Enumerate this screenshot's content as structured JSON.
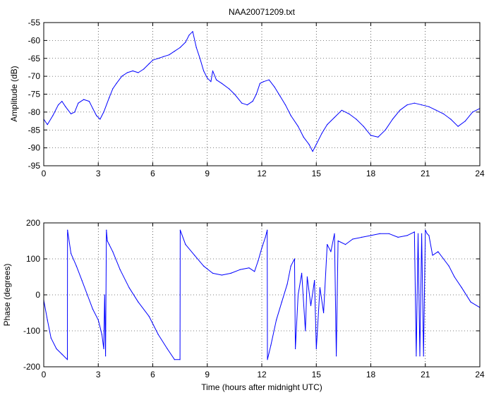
{
  "chart_data": [
    {
      "type": "line",
      "title": "NAA20071209.txt",
      "xlabel": "",
      "ylabel": "Amplitude (dB)",
      "xlim": [
        0,
        24
      ],
      "ylim": [
        -95,
        -55
      ],
      "xticks": [
        "0",
        "3",
        "6",
        "9",
        "12",
        "15",
        "18",
        "21",
        "24"
      ],
      "yticks": [
        "-55",
        "-60",
        "-65",
        "-70",
        "-75",
        "-80",
        "-85",
        "-90",
        "-95"
      ],
      "grid": true,
      "series": [
        {
          "color": "#0000ff",
          "x": [
            0.0,
            0.2,
            0.5,
            0.8,
            1.0,
            1.2,
            1.5,
            1.7,
            1.9,
            2.2,
            2.5,
            2.7,
            2.9,
            3.1,
            3.3,
            3.6,
            3.8,
            4.0,
            4.3,
            4.6,
            4.9,
            5.2,
            5.5,
            5.8,
            6.0,
            6.3,
            6.6,
            6.9,
            7.2,
            7.5,
            7.8,
            8.0,
            8.2,
            8.4,
            8.6,
            8.8,
            9.0,
            9.2,
            9.3,
            9.5,
            9.8,
            10.2,
            10.5,
            10.9,
            11.2,
            11.5,
            11.7,
            11.9,
            12.1,
            12.4,
            12.7,
            13.0,
            13.3,
            13.6,
            14.0,
            14.3,
            14.6,
            14.8,
            15.0,
            15.3,
            15.6,
            16.0,
            16.4,
            16.8,
            17.2,
            17.6,
            18.0,
            18.4,
            18.8,
            19.2,
            19.6,
            20.0,
            20.4,
            20.8,
            21.2,
            21.6,
            22.0,
            22.4,
            22.8,
            23.2,
            23.6,
            24.0
          ],
          "values": [
            -82,
            -83.5,
            -81,
            -78,
            -77,
            -78.5,
            -80.5,
            -80,
            -77.5,
            -76.5,
            -77,
            -79,
            -81,
            -82,
            -80,
            -76,
            -73.5,
            -72,
            -70,
            -69,
            -68.5,
            -69,
            -68,
            -66.5,
            -65.5,
            -65,
            -64.5,
            -64,
            -63,
            -62,
            -60.5,
            -58.5,
            -57.5,
            -62,
            -65,
            -68.5,
            -70.5,
            -71.5,
            -68.5,
            -71,
            -72,
            -73.5,
            -75,
            -77.5,
            -78,
            -77,
            -75,
            -72,
            -71.5,
            -71,
            -73,
            -75.5,
            -78,
            -81,
            -84,
            -87,
            -89,
            -91,
            -89,
            -86,
            -83.5,
            -81.5,
            -79.5,
            -80.5,
            -82,
            -84,
            -86.5,
            -87,
            -85,
            -82,
            -79.5,
            -78,
            -77.5,
            -78,
            -78.5,
            -79.5,
            -80.5,
            -82,
            -84,
            -82.5,
            -80,
            -79
          ]
        }
      ]
    },
    {
      "type": "line",
      "title": "",
      "xlabel": "Time (hours after midnight UTC)",
      "ylabel": "Phase (degrees)",
      "xlim": [
        0,
        24
      ],
      "ylim": [
        -200,
        200
      ],
      "xticks": [
        "0",
        "3",
        "6",
        "9",
        "12",
        "15",
        "18",
        "21",
        "24"
      ],
      "yticks": [
        "200",
        "100",
        "0",
        "-100",
        "-200"
      ],
      "grid": true,
      "series": [
        {
          "color": "#0000ff",
          "x": [
            0.0,
            0.2,
            0.4,
            0.7,
            1.0,
            1.3,
            1.31,
            1.5,
            1.8,
            2.1,
            2.4,
            2.7,
            3.0,
            3.2,
            3.3,
            3.35,
            3.4,
            3.45,
            3.5,
            3.6,
            3.8,
            4.2,
            4.7,
            5.2,
            5.8,
            6.3,
            6.8,
            7.2,
            7.5,
            7.51,
            7.8,
            8.3,
            8.8,
            9.3,
            9.8,
            10.3,
            10.8,
            11.3,
            11.6,
            11.8,
            12.0,
            12.2,
            12.3,
            12.31,
            12.5,
            12.8,
            13.1,
            13.4,
            13.6,
            13.8,
            13.85,
            14.0,
            14.2,
            14.4,
            14.5,
            14.7,
            14.9,
            15.0,
            15.2,
            15.4,
            15.6,
            15.8,
            16.0,
            16.1,
            16.2,
            16.6,
            17.0,
            17.5,
            18.0,
            18.5,
            19.0,
            19.5,
            20.0,
            20.4,
            20.5,
            20.6,
            20.7,
            20.8,
            20.9,
            21.0,
            21.1,
            21.2,
            21.4,
            21.7,
            22.0,
            22.3,
            22.6,
            23.0,
            23.5,
            24.0
          ],
          "values": [
            -15,
            -70,
            -120,
            -150,
            -165,
            -180,
            180,
            115,
            80,
            40,
            0,
            -40,
            -70,
            -110,
            -150,
            0,
            -170,
            180,
            150,
            140,
            120,
            70,
            20,
            -20,
            -60,
            -110,
            -150,
            -180,
            -180,
            180,
            140,
            110,
            80,
            60,
            55,
            60,
            70,
            75,
            65,
            95,
            130,
            160,
            180,
            -180,
            -140,
            -70,
            -20,
            30,
            80,
            100,
            -150,
            0,
            60,
            -100,
            50,
            -30,
            40,
            -150,
            20,
            -50,
            140,
            120,
            170,
            -170,
            150,
            140,
            155,
            160,
            165,
            170,
            170,
            160,
            165,
            175,
            -170,
            170,
            -170,
            170,
            -170,
            180,
            170,
            165,
            110,
            120,
            100,
            80,
            50,
            20,
            -20,
            -35
          ]
        }
      ]
    }
  ]
}
